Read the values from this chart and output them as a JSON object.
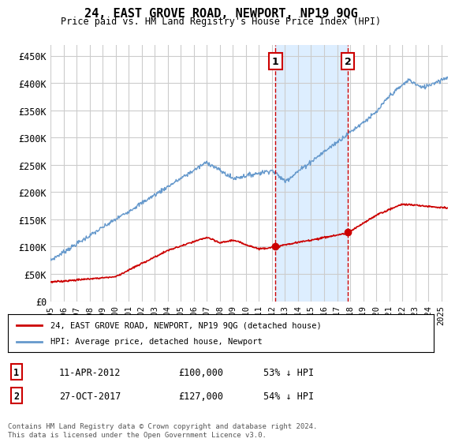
{
  "title": "24, EAST GROVE ROAD, NEWPORT, NP19 9QG",
  "subtitle": "Price paid vs. HM Land Registry's House Price Index (HPI)",
  "ylabel_ticks": [
    "£0",
    "£50K",
    "£100K",
    "£150K",
    "£200K",
    "£250K",
    "£300K",
    "£350K",
    "£400K",
    "£450K"
  ],
  "ytick_vals": [
    0,
    50000,
    100000,
    150000,
    200000,
    250000,
    300000,
    350000,
    400000,
    450000
  ],
  "ylim": [
    0,
    470000
  ],
  "xlim_start": 1995.0,
  "xlim_end": 2025.5,
  "sale1_year": 2012.27,
  "sale2_year": 2017.82,
  "sale1_price": 100000,
  "sale2_price": 127000,
  "sale1_label": "1",
  "sale2_label": "2",
  "sale1_date": "11-APR-2012",
  "sale2_date": "27-OCT-2017",
  "sale1_hpi": "53% ↓ HPI",
  "sale2_hpi": "54% ↓ HPI",
  "legend1": "24, EAST GROVE ROAD, NEWPORT, NP19 9QG (detached house)",
  "legend2": "HPI: Average price, detached house, Newport",
  "footnote": "Contains HM Land Registry data © Crown copyright and database right 2024.\nThis data is licensed under the Open Government Licence v3.0.",
  "red_color": "#cc0000",
  "blue_color": "#6699cc",
  "shade_color": "#ddeeff",
  "grid_color": "#cccccc",
  "bg_color": "#ffffff"
}
